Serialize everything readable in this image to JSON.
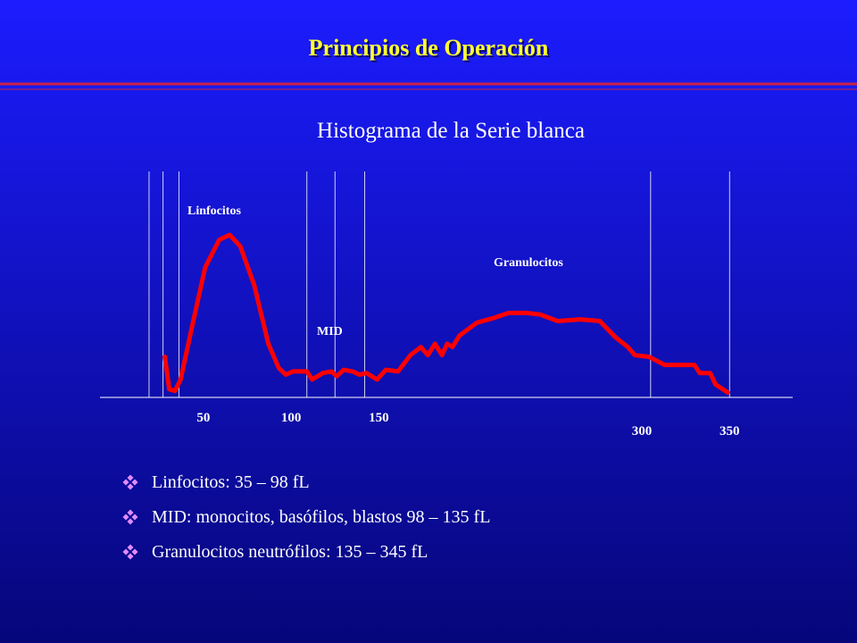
{
  "header": {
    "title": "Principios de Operación"
  },
  "chart_data": {
    "type": "line",
    "title": "Histograma de la Serie blanca",
    "annotations": [
      "Linfocitos",
      "MID",
      "Granulocitos"
    ],
    "x": [
      28,
      30.5,
      33.7,
      37,
      43,
      51,
      59,
      65,
      71,
      79,
      87,
      93,
      97,
      101,
      109,
      112,
      118,
      123,
      126,
      130,
      135,
      139,
      143,
      149,
      154,
      161,
      168,
      174,
      178,
      182,
      186,
      189,
      192,
      196,
      206,
      216,
      224,
      234,
      242,
      252,
      265,
      276,
      285,
      292,
      296,
      304,
      313,
      323,
      330,
      333,
      339,
      342,
      349
    ],
    "values": [
      25,
      5,
      4,
      11,
      41,
      80,
      97,
      100,
      93,
      69,
      33,
      18,
      14,
      16,
      16,
      11,
      15,
      16,
      13,
      17,
      16,
      14,
      15,
      11,
      17,
      16,
      26,
      31,
      26,
      33,
      26,
      33,
      31,
      38,
      46,
      49,
      52,
      52,
      51,
      47,
      48,
      47,
      37,
      31,
      26,
      25,
      20,
      20,
      20,
      15,
      15,
      8,
      3
    ],
    "color": "#ff0000",
    "xlim": [
      -10,
      385
    ],
    "xticks": [
      50,
      100,
      150,
      300,
      350
    ],
    "thresholds": [
      19,
      27,
      36,
      109,
      125,
      142,
      305,
      350
    ]
  },
  "bullets": [
    "Linfocitos: 35 – 98 fL",
    "MID: monocitos, basófilos, blastos 98 – 135 fL",
    "Granulocitos neutrófilos: 135 – 345 fL"
  ]
}
